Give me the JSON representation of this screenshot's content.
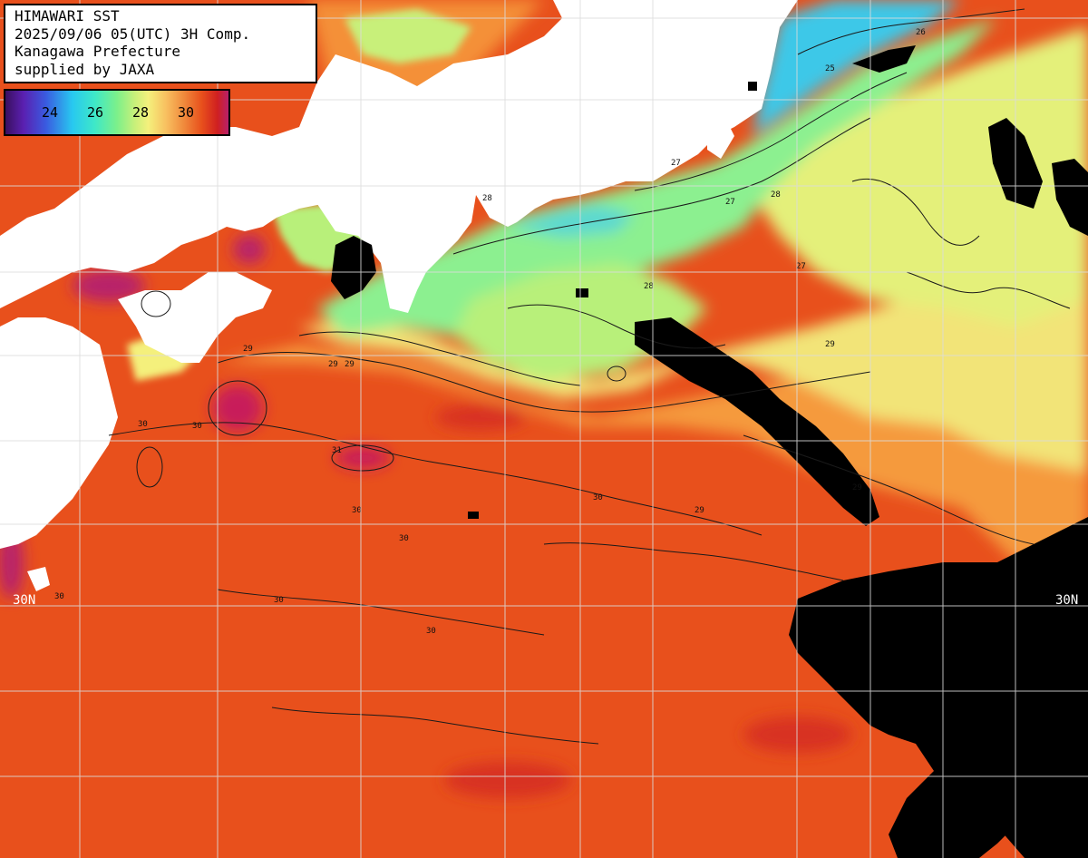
{
  "info": {
    "line1": "HIMAWARI SST",
    "line2": "2025/09/06 05(UTC) 3H Comp.",
    "line3": "Kanagawa Prefecture",
    "line4": "supplied by JAXA"
  },
  "legend": {
    "ticks": [
      "24",
      "26",
      "28",
      "30"
    ]
  },
  "latitude_labels": {
    "left": "30N",
    "right": "30N"
  },
  "contour_labels": [
    "29",
    "30",
    "29",
    "31",
    "30",
    "30",
    "28",
    "26",
    "27",
    "25",
    "27",
    "27",
    "28",
    "29",
    "29",
    "30",
    "30",
    "30",
    "29",
    "28",
    "30",
    "30",
    "29"
  ],
  "colors": {
    "land": "#ffffff",
    "cloud": "#000000",
    "grid": "#d0d0d0",
    "warm_sea": "#e8501c",
    "very_warm_sea": "#c81e5a",
    "cool_sea": "#7cf08a",
    "cold_sea": "#28c8f0",
    "mid_sea": "#f4f07c",
    "orange_sea": "#f59a3c"
  }
}
